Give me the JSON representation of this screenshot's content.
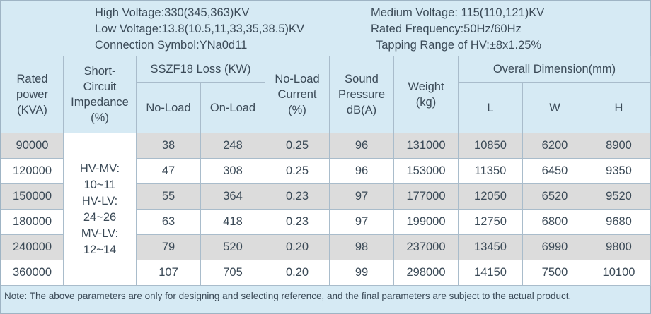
{
  "specs": {
    "high_voltage": "High Voltage:330(345,363)KV",
    "low_voltage": "Low Voltage:13.8(10.5,11,33,35,38.5)KV",
    "connection": "Connection Symbol:YNa0d11",
    "medium_voltage": "Medium Voltage: 115(110,121)KV",
    "frequency": "Rated Frequency:50Hz/60Hz",
    "tapping": "Tapping Range of HV:±8x1.25%"
  },
  "headers": {
    "rated_power": [
      "Rated",
      "power",
      "(KVA)"
    ],
    "impedance": [
      "Short-",
      "Circuit",
      "Impedance",
      "(%)"
    ],
    "loss_group": "SSZF18 Loss (KW)",
    "no_load": "No-Load",
    "on_load": "On-Load",
    "no_load_current": [
      "No-Load",
      "Current",
      "(%)"
    ],
    "sound": [
      "Sound",
      "Pressure",
      "dB(A)"
    ],
    "weight": [
      "Weight",
      "(kg)"
    ],
    "dimension_group": "Overall Dimension(mm)",
    "L": "L",
    "W": "W",
    "H": "H"
  },
  "impedance_values": [
    "HV-MV:",
    "10~11",
    "HV-LV:",
    "24~26",
    "MV-LV:",
    "12~14"
  ],
  "rows": [
    {
      "power": "90000",
      "no_load": "38",
      "on_load": "248",
      "current": "0.25",
      "sound": "96",
      "weight": "131000",
      "L": "10850",
      "W": "6200",
      "H": "8900"
    },
    {
      "power": "120000",
      "no_load": "47",
      "on_load": "308",
      "current": "0.25",
      "sound": "96",
      "weight": "153000",
      "L": "11350",
      "W": "6450",
      "H": "9350"
    },
    {
      "power": "150000",
      "no_load": "55",
      "on_load": "364",
      "current": "0.23",
      "sound": "97",
      "weight": "177000",
      "L": "12050",
      "W": "6520",
      "H": "9520"
    },
    {
      "power": "180000",
      "no_load": "63",
      "on_load": "418",
      "current": "0.23",
      "sound": "97",
      "weight": "199000",
      "L": "12750",
      "W": "6800",
      "H": "9680"
    },
    {
      "power": "240000",
      "no_load": "79",
      "on_load": "520",
      "current": "0.20",
      "sound": "98",
      "weight": "237000",
      "L": "13450",
      "W": "6990",
      "H": "9800"
    },
    {
      "power": "360000",
      "no_load": "107",
      "on_load": "705",
      "current": "0.20",
      "sound": "99",
      "weight": "298000",
      "L": "14150",
      "W": "7500",
      "H": "10100"
    }
  ],
  "note": "Note: The above parameters are only for designing and selecting  reference, and the final parameters are subject to the actual product."
}
